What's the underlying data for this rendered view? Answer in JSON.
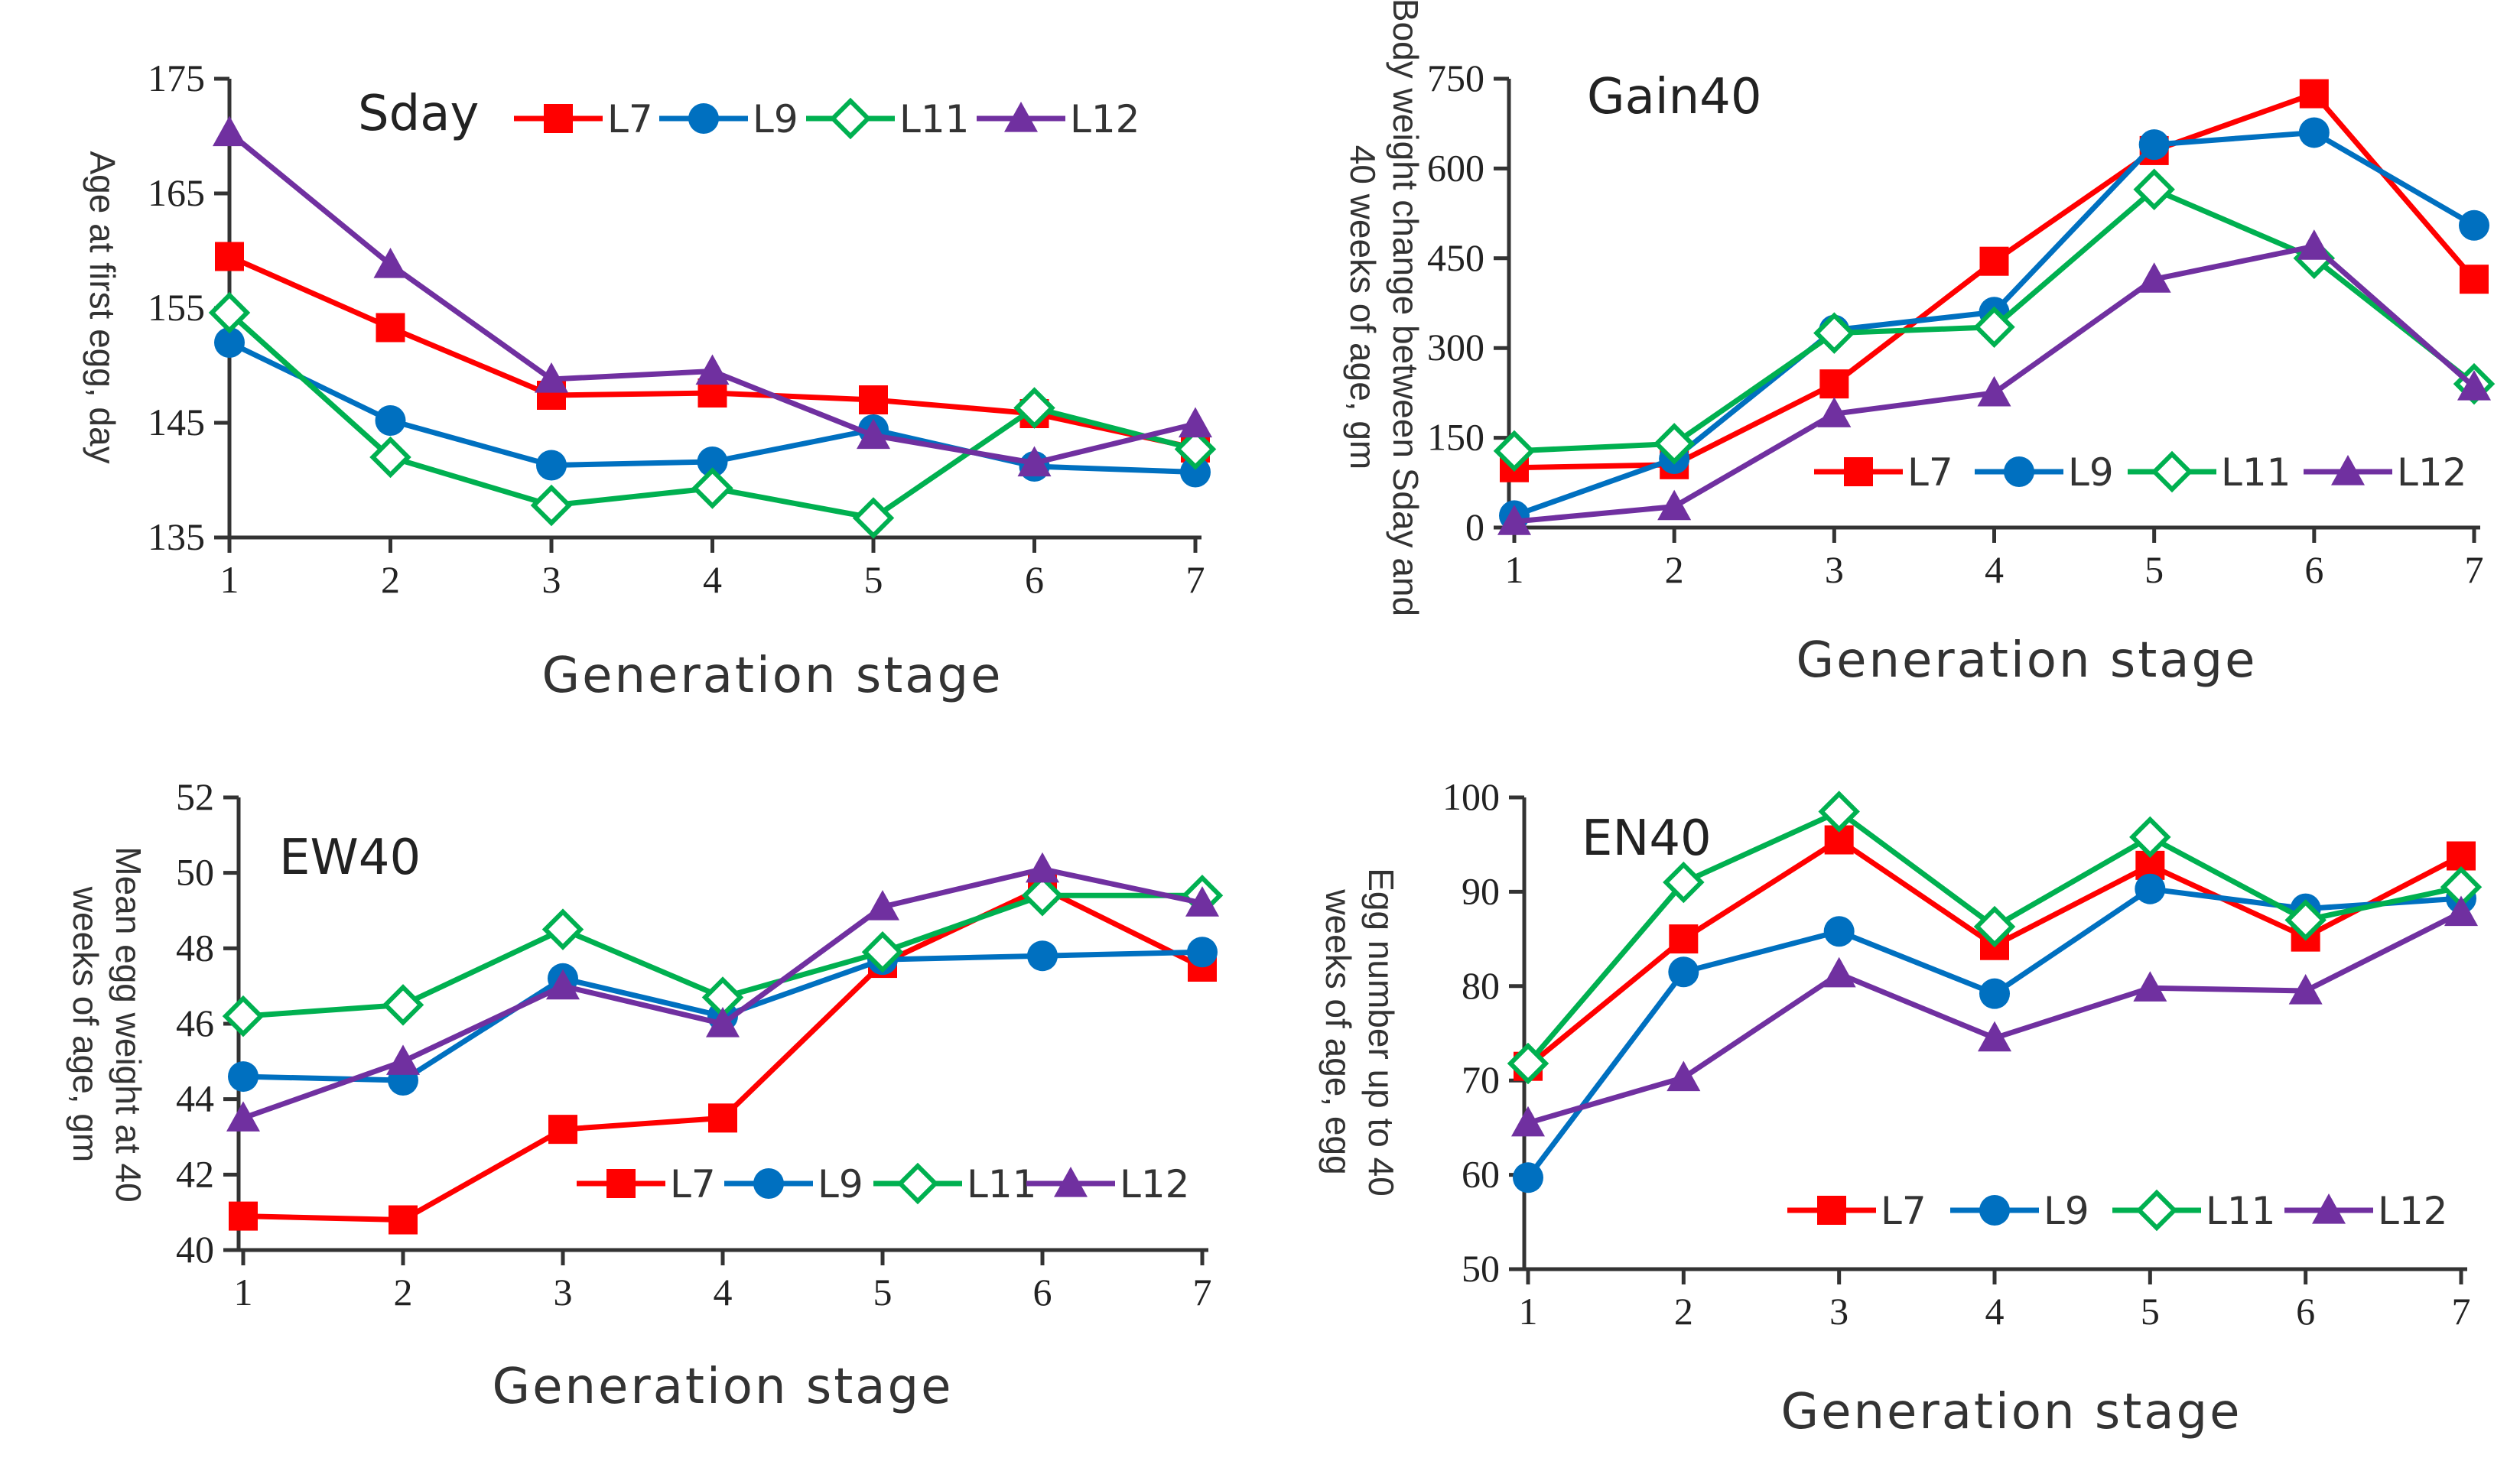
{
  "chart_data": [
    {
      "type": "line",
      "title": "Sday",
      "xlabel": "Generation stage",
      "ylabel": "Age at first egg, day",
      "x": [
        1,
        2,
        3,
        4,
        5,
        6,
        7
      ],
      "ylim": [
        135,
        175
      ],
      "yticks": [
        135,
        145,
        155,
        165,
        175
      ],
      "legend_position": "top-right",
      "series": [
        {
          "name": "L7",
          "marker": "square",
          "color": "#FF0000",
          "values": [
            159.5,
            153.3,
            147.4,
            147.6,
            147.0,
            145.8,
            142.8
          ]
        },
        {
          "name": "L9",
          "marker": "circle",
          "color": "#0070C0",
          "values": [
            152.0,
            145.2,
            141.3,
            141.6,
            144.4,
            141.2,
            140.7
          ]
        },
        {
          "name": "L11",
          "marker": "diamond",
          "color": "#00B050",
          "values": [
            154.6,
            142.0,
            137.8,
            139.3,
            136.7,
            146.3,
            142.7
          ]
        },
        {
          "name": "L12",
          "marker": "triangle",
          "color": "#7030A0",
          "values": [
            170.3,
            158.8,
            148.8,
            149.5,
            143.9,
            141.5,
            144.9
          ]
        }
      ]
    },
    {
      "type": "line",
      "title": "Gain40",
      "xlabel": "Generation stage",
      "ylabel": "Body weight change between Sday and 40 weeks of age, gm",
      "x": [
        1,
        2,
        3,
        4,
        5,
        6,
        7
      ],
      "ylim": [
        0,
        750
      ],
      "yticks": [
        0,
        150,
        300,
        450,
        600,
        750
      ],
      "legend_position": "center-right",
      "series": [
        {
          "name": "L7",
          "marker": "square",
          "color": "#FF0000",
          "values": [
            100,
            105,
            240,
            445,
            630,
            725,
            415
          ]
        },
        {
          "name": "L9",
          "marker": "circle",
          "color": "#0070C0",
          "values": [
            20,
            115,
            330,
            360,
            640,
            660,
            505
          ]
        },
        {
          "name": "L11",
          "marker": "diamond",
          "color": "#00B050",
          "values": [
            128,
            140,
            325,
            335,
            565,
            450,
            240
          ]
        },
        {
          "name": "L12",
          "marker": "triangle",
          "color": "#7030A0",
          "values": [
            10,
            35,
            190,
            225,
            415,
            470,
            235
          ]
        }
      ]
    },
    {
      "type": "line",
      "title": "EW40",
      "xlabel": "Generation stage",
      "ylabel": "Mean egg weight at 40 weeks of age, gm",
      "x": [
        1,
        2,
        3,
        4,
        5,
        6,
        7
      ],
      "ylim": [
        40,
        52
      ],
      "yticks": [
        40,
        42,
        44,
        46,
        48,
        50,
        52
      ],
      "legend_position": "bottom-right",
      "series": [
        {
          "name": "L7",
          "marker": "square",
          "color": "#FF0000",
          "values": [
            40.9,
            40.8,
            43.2,
            43.5,
            47.6,
            49.6,
            47.5
          ]
        },
        {
          "name": "L9",
          "marker": "circle",
          "color": "#0070C0",
          "values": [
            44.6,
            44.5,
            47.2,
            46.2,
            47.7,
            47.8,
            47.9
          ]
        },
        {
          "name": "L11",
          "marker": "diamond",
          "color": "#00B050",
          "values": [
            46.2,
            46.5,
            48.5,
            46.7,
            47.9,
            49.4,
            49.4
          ]
        },
        {
          "name": "L12",
          "marker": "triangle",
          "color": "#7030A0",
          "values": [
            43.5,
            45.0,
            47.0,
            46.0,
            49.1,
            50.1,
            49.2
          ]
        }
      ]
    },
    {
      "type": "line",
      "title": "EN40",
      "xlabel": "Generation stage",
      "ylabel": "Egg number up to 40 weeks of age, egg",
      "x": [
        1,
        2,
        3,
        4,
        5,
        6,
        7
      ],
      "ylim": [
        50,
        100
      ],
      "yticks": [
        50,
        60,
        70,
        80,
        90,
        100
      ],
      "legend_position": "bottom-right",
      "series": [
        {
          "name": "L7",
          "marker": "square",
          "color": "#FF0000",
          "values": [
            71.5,
            85.0,
            95.5,
            84.3,
            92.8,
            85.2,
            93.8
          ]
        },
        {
          "name": "L9",
          "marker": "circle",
          "color": "#0070C0",
          "values": [
            59.7,
            81.5,
            85.8,
            79.2,
            90.3,
            88.2,
            89.3
          ]
        },
        {
          "name": "L11",
          "marker": "diamond",
          "color": "#00B050",
          "values": [
            71.8,
            91.0,
            98.5,
            86.3,
            95.8,
            87.0,
            90.5
          ]
        },
        {
          "name": "L12",
          "marker": "triangle",
          "color": "#7030A0",
          "values": [
            65.5,
            70.3,
            81.3,
            74.5,
            79.8,
            79.5,
            87.8
          ]
        }
      ]
    }
  ]
}
